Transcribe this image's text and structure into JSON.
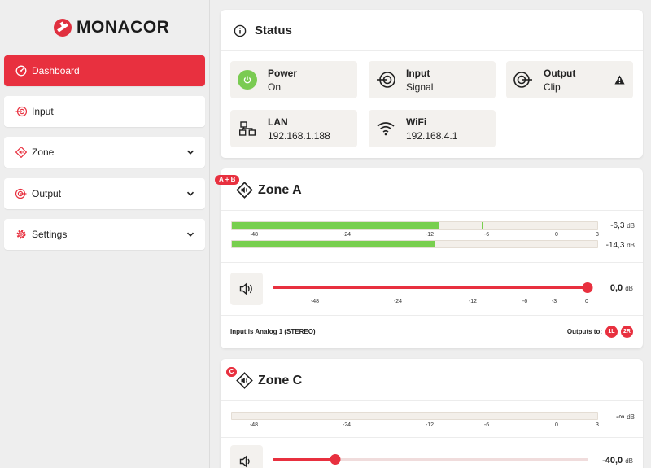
{
  "brand": {
    "name": "MONACOR"
  },
  "sidebar": {
    "items": [
      {
        "label": "Dashboard",
        "icon": "dashboard-icon",
        "active": true
      },
      {
        "label": "Input",
        "icon": "input-icon"
      },
      {
        "label": "Zone",
        "icon": "zone-icon",
        "expandable": true
      },
      {
        "label": "Output",
        "icon": "output-icon",
        "expandable": true
      },
      {
        "label": "Settings",
        "icon": "gear-icon",
        "expandable": true
      }
    ]
  },
  "status": {
    "title": "Status",
    "tiles": [
      {
        "title": "Power",
        "value": "On"
      },
      {
        "title": "Input",
        "value": "Signal"
      },
      {
        "title": "Output",
        "value": "Clip",
        "warning": true
      },
      {
        "title": "LAN",
        "value": "192.168.1.188"
      },
      {
        "title": "WiFi",
        "value": "192.168.4.1"
      }
    ]
  },
  "zones": [
    {
      "badge": "A + B",
      "name": "Zone A",
      "meter_ticks": [
        "-48",
        "-24",
        "-12",
        "-6",
        "0",
        "3"
      ],
      "meters": [
        {
          "level_db": -6.3,
          "label": "-6,3",
          "unit": "dB"
        },
        {
          "level_db": -14.3,
          "label": "-14,3",
          "unit": "dB"
        }
      ],
      "volume": {
        "value_db": 0.0,
        "label": "0,0",
        "unit": "dB"
      },
      "slider_ticks": [
        "-48",
        "-24",
        "-12",
        "-6",
        "-3",
        "0"
      ],
      "input_text": "Input is Analog 1 (STEREO)",
      "outputs_label": "Outputs to:",
      "outputs": [
        "1L",
        "2R"
      ]
    },
    {
      "badge": "C",
      "name": "Zone C",
      "meter_ticks": [
        "-48",
        "-24",
        "-12",
        "-6",
        "0",
        "3"
      ],
      "meters": [
        {
          "label": "-∞",
          "unit": "dB"
        }
      ],
      "volume": {
        "value_db": -40.0,
        "label": "-40,0",
        "unit": "dB"
      }
    }
  ],
  "colors": {
    "accent": "#e8303f",
    "meter": "#78cf4e",
    "power_on": "#7acb52"
  }
}
